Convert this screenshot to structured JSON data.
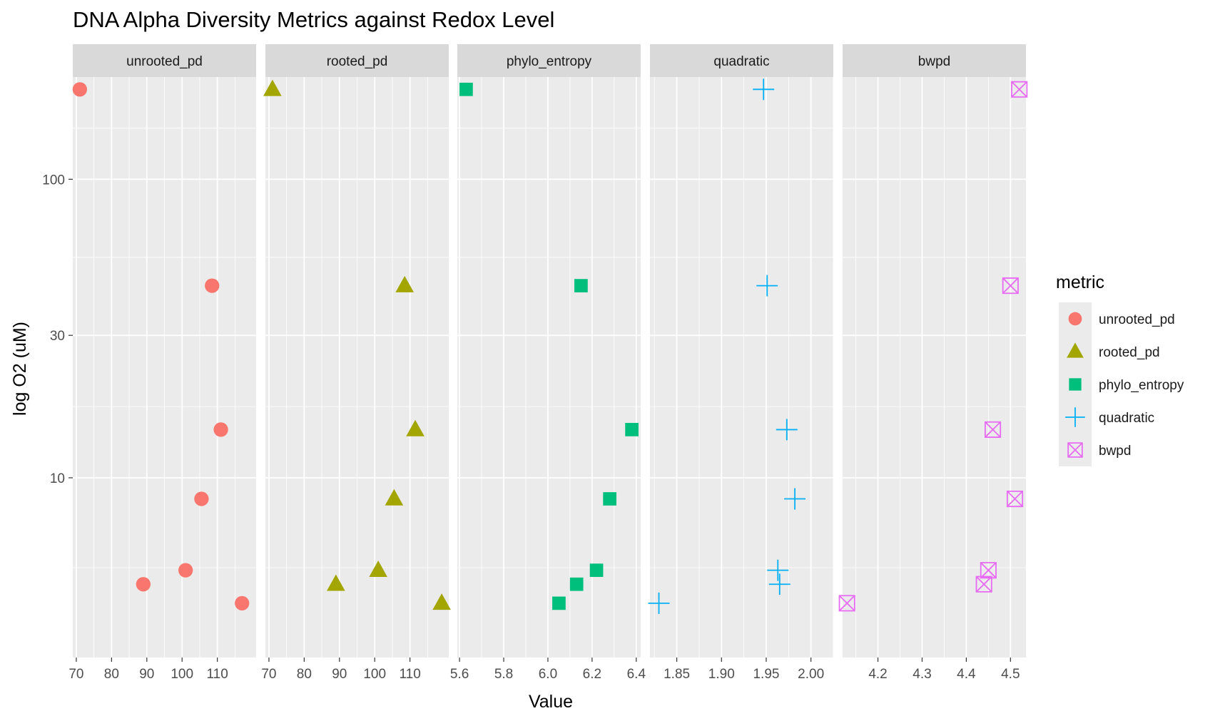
{
  "chart_data": {
    "type": "scatter",
    "title": "DNA Alpha Diversity Metrics against Redox Level",
    "xlabel": "Value",
    "ylabel": "log O2 (uM)",
    "y_scale": "log10",
    "y_ticks": [
      {
        "value": 100,
        "label": "100"
      },
      {
        "value": 30,
        "label": "30"
      },
      {
        "value": 10,
        "label": "10"
      }
    ],
    "y_range": [
      2.5,
      220
    ],
    "legend": {
      "title": "metric",
      "position": "right",
      "entries": [
        {
          "label": "unrooted_pd",
          "shape": "circle",
          "color": "#F8766D"
        },
        {
          "label": "rooted_pd",
          "shape": "triangle",
          "color": "#A3A500"
        },
        {
          "label": "phylo_entropy",
          "shape": "square",
          "color": "#00BF7D"
        },
        {
          "label": "quadratic",
          "shape": "plus",
          "color": "#00B0F6"
        },
        {
          "label": "bwpd",
          "shape": "boxcross",
          "color": "#E76BF3"
        }
      ]
    },
    "panels": [
      {
        "name": "unrooted_pd",
        "shape": "circle",
        "color": "#F8766D",
        "xlim": [
          69,
          121
        ],
        "x_ticks": [
          {
            "value": 70,
            "label": "70"
          },
          {
            "value": 80,
            "label": "80"
          },
          {
            "value": 90,
            "label": "90"
          },
          {
            "value": 100,
            "label": "100"
          },
          {
            "value": 110,
            "label": "110"
          }
        ],
        "points": [
          {
            "x": 71,
            "y": 200
          },
          {
            "x": 108.5,
            "y": 44
          },
          {
            "x": 111,
            "y": 14.5
          },
          {
            "x": 105.5,
            "y": 8.5
          },
          {
            "x": 101,
            "y": 4.9
          },
          {
            "x": 89,
            "y": 4.4
          },
          {
            "x": 117,
            "y": 3.8
          }
        ]
      },
      {
        "name": "rooted_pd",
        "shape": "triangle",
        "color": "#A3A500",
        "xlim": [
          69,
          121
        ],
        "x_ticks": [
          {
            "value": 70,
            "label": "70"
          },
          {
            "value": 80,
            "label": "80"
          },
          {
            "value": 90,
            "label": "90"
          },
          {
            "value": 100,
            "label": "100"
          },
          {
            "value": 110,
            "label": "110"
          }
        ],
        "points": [
          {
            "x": 71,
            "y": 200
          },
          {
            "x": 108.5,
            "y": 44
          },
          {
            "x": 111.5,
            "y": 14.5
          },
          {
            "x": 105.5,
            "y": 8.5
          },
          {
            "x": 101,
            "y": 4.9
          },
          {
            "x": 89,
            "y": 4.4
          },
          {
            "x": 119,
            "y": 3.8
          }
        ]
      },
      {
        "name": "phylo_entropy",
        "shape": "square",
        "color": "#00BF7D",
        "xlim": [
          5.59,
          6.42
        ],
        "x_ticks": [
          {
            "value": 5.6,
            "label": "5.6"
          },
          {
            "value": 5.8,
            "label": "5.8"
          },
          {
            "value": 6.0,
            "label": "6.0"
          },
          {
            "value": 6.2,
            "label": "6.2"
          },
          {
            "value": 6.4,
            "label": "6.4"
          }
        ],
        "points": [
          {
            "x": 5.63,
            "y": 200
          },
          {
            "x": 6.15,
            "y": 44
          },
          {
            "x": 6.38,
            "y": 14.5
          },
          {
            "x": 6.28,
            "y": 8.5
          },
          {
            "x": 6.22,
            "y": 4.9
          },
          {
            "x": 6.13,
            "y": 4.4
          },
          {
            "x": 6.05,
            "y": 3.8
          }
        ]
      },
      {
        "name": "quadratic",
        "shape": "plus",
        "color": "#00B0F6",
        "xlim": [
          1.82,
          2.025
        ],
        "x_ticks": [
          {
            "value": 1.85,
            "label": "1.85"
          },
          {
            "value": 1.9,
            "label": "1.90"
          },
          {
            "value": 1.95,
            "label": "1.95"
          },
          {
            "value": 2.0,
            "label": "2.00"
          }
        ],
        "points": [
          {
            "x": 1.947,
            "y": 200
          },
          {
            "x": 1.951,
            "y": 44
          },
          {
            "x": 1.973,
            "y": 14.5
          },
          {
            "x": 1.982,
            "y": 8.5
          },
          {
            "x": 1.963,
            "y": 4.9
          },
          {
            "x": 1.965,
            "y": 4.4
          },
          {
            "x": 1.83,
            "y": 3.8
          }
        ]
      },
      {
        "name": "bwpd",
        "shape": "boxcross",
        "color": "#E76BF3",
        "xlim": [
          4.12,
          4.535
        ],
        "x_ticks": [
          {
            "value": 4.2,
            "label": "4.2"
          },
          {
            "value": 4.3,
            "label": "4.3"
          },
          {
            "value": 4.4,
            "label": "4.4"
          },
          {
            "value": 4.5,
            "label": "4.5"
          }
        ],
        "points": [
          {
            "x": 4.52,
            "y": 200
          },
          {
            "x": 4.5,
            "y": 44
          },
          {
            "x": 4.46,
            "y": 14.5
          },
          {
            "x": 4.51,
            "y": 8.5
          },
          {
            "x": 4.45,
            "y": 4.9
          },
          {
            "x": 4.44,
            "y": 4.4
          },
          {
            "x": 4.13,
            "y": 3.8
          }
        ]
      }
    ]
  }
}
